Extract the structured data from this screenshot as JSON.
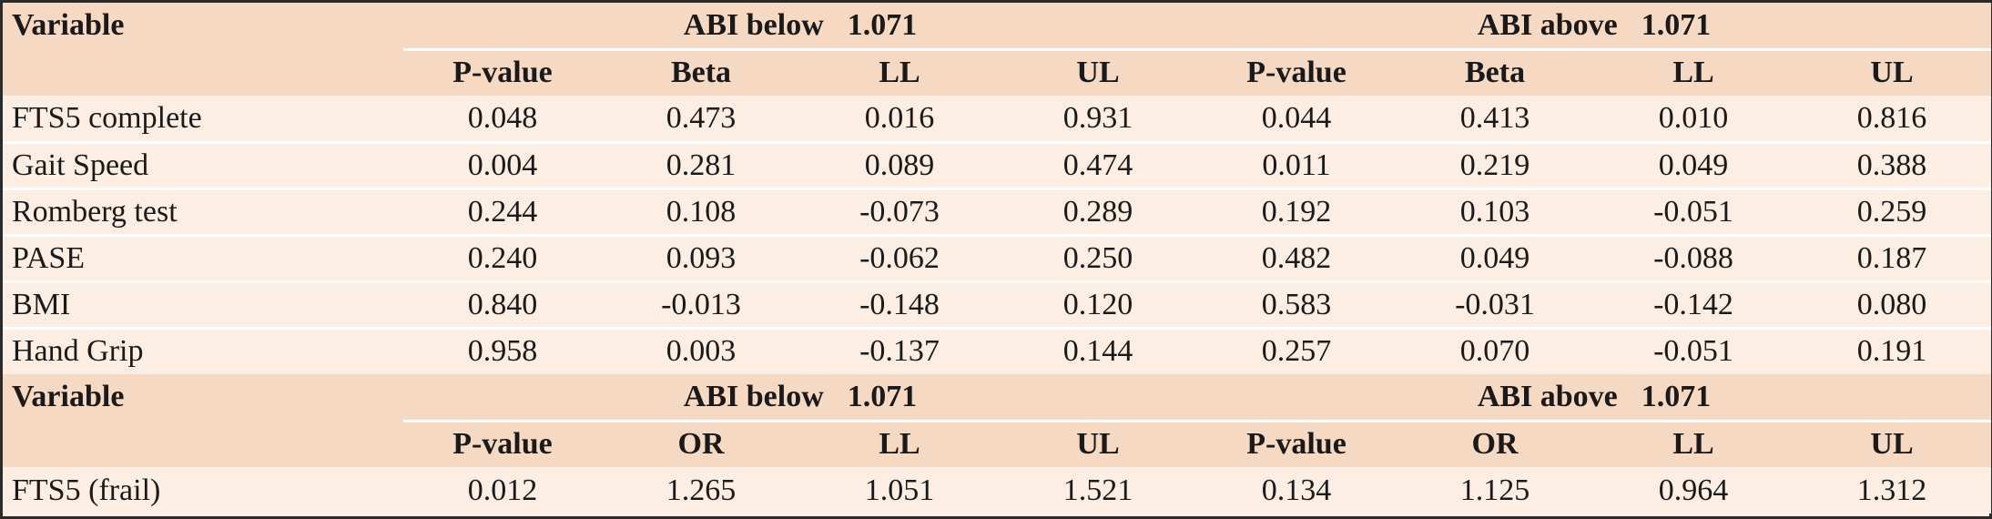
{
  "table1": {
    "var_header": "Variable",
    "group_left": {
      "label": "ABI below",
      "value": "1.071"
    },
    "group_right": {
      "label": "ABI above",
      "value": "1.071"
    },
    "columns": [
      "P-value",
      "Beta",
      "LL",
      "UL",
      "P-value",
      "Beta",
      "LL",
      "UL"
    ],
    "rows": [
      {
        "name": "FTS5 complete",
        "values": [
          "0.048",
          "0.473",
          "0.016",
          "0.931",
          "0.044",
          "0.413",
          "0.010",
          "0.816"
        ]
      },
      {
        "name": "Gait Speed",
        "values": [
          "0.004",
          "0.281",
          "0.089",
          "0.474",
          "0.011",
          "0.219",
          "0.049",
          "0.388"
        ]
      },
      {
        "name": "Romberg test",
        "values": [
          "0.244",
          "0.108",
          "-0.073",
          "0.289",
          "0.192",
          "0.103",
          "-0.051",
          "0.259"
        ]
      },
      {
        "name": "PASE",
        "values": [
          "0.240",
          "0.093",
          "-0.062",
          "0.250",
          "0.482",
          "0.049",
          "-0.088",
          "0.187"
        ]
      },
      {
        "name": "BMI",
        "values": [
          "0.840",
          "-0.013",
          "-0.148",
          "0.120",
          "0.583",
          "-0.031",
          "-0.142",
          "0.080"
        ]
      },
      {
        "name": "Hand Grip",
        "values": [
          "0.958",
          "0.003",
          "-0.137",
          "0.144",
          "0.257",
          "0.070",
          "-0.051",
          "0.191"
        ]
      }
    ]
  },
  "table2": {
    "var_header": "Variable",
    "group_left": {
      "label": "ABI below",
      "value": "1.071"
    },
    "group_right": {
      "label": "ABI above",
      "value": "1.071"
    },
    "columns": [
      "P-value",
      "OR",
      "LL",
      "UL",
      "P-value",
      "OR",
      "LL",
      "UL"
    ],
    "rows": [
      {
        "name": "FTS5 (frail)",
        "values": [
          "0.012",
          "1.265",
          "1.051",
          "1.521",
          "0.134",
          "1.125",
          "0.964",
          "1.312"
        ]
      }
    ]
  },
  "colors": {
    "header_bg": "#f6d9c2",
    "body_bg": "#fdeee3",
    "border": "#2b2b2b"
  }
}
